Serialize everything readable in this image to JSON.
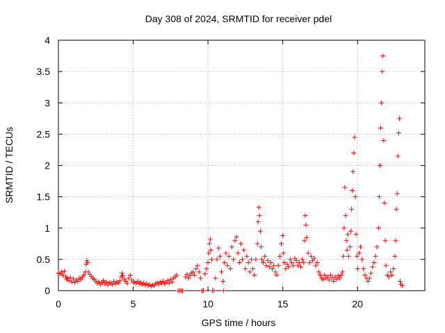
{
  "chart_data": {
    "type": "scatter",
    "title": "Day 308 of 2024, SRMTID for receiver pdel",
    "xlabel": "GPS time / hours",
    "ylabel": "SRMTID / TECUs",
    "xlim": [
      0,
      24.5
    ],
    "ylim": [
      0,
      4
    ],
    "xticks": [
      0,
      5,
      10,
      15,
      20
    ],
    "yticks": [
      0,
      0.5,
      1,
      1.5,
      2,
      2.5,
      3,
      3.5,
      4
    ],
    "xtick_labels": [
      "0",
      "5",
      "10",
      "15",
      "20"
    ],
    "ytick_labels": [
      "0",
      "0.5",
      "1",
      "1.5",
      "2",
      "2.5",
      "3",
      "3.5",
      "4"
    ],
    "grid": true,
    "marker": "+",
    "series": [
      {
        "name": "SRMTID",
        "color": "#ff0000",
        "points": [
          [
            0.0,
            0.28
          ],
          [
            0.1,
            0.27
          ],
          [
            0.2,
            0.3
          ],
          [
            0.3,
            0.25
          ],
          [
            0.4,
            0.31
          ],
          [
            0.5,
            0.22
          ],
          [
            0.55,
            0.18
          ],
          [
            0.6,
            0.2
          ],
          [
            0.7,
            0.16
          ],
          [
            0.8,
            0.21
          ],
          [
            0.9,
            0.14
          ],
          [
            1.0,
            0.19
          ],
          [
            1.1,
            0.13
          ],
          [
            1.2,
            0.17
          ],
          [
            1.3,
            0.15
          ],
          [
            1.4,
            0.2
          ],
          [
            1.5,
            0.18
          ],
          [
            1.6,
            0.22
          ],
          [
            1.7,
            0.25
          ],
          [
            1.8,
            0.3
          ],
          [
            1.85,
            0.42
          ],
          [
            1.9,
            0.48
          ],
          [
            1.95,
            0.45
          ],
          [
            2.0,
            0.3
          ],
          [
            2.1,
            0.26
          ],
          [
            2.2,
            0.23
          ],
          [
            2.3,
            0.2
          ],
          [
            2.4,
            0.18
          ],
          [
            2.5,
            0.15
          ],
          [
            2.6,
            0.12
          ],
          [
            2.7,
            0.14
          ],
          [
            2.8,
            0.1
          ],
          [
            2.9,
            0.13
          ],
          [
            3.0,
            0.16
          ],
          [
            3.1,
            0.11
          ],
          [
            3.2,
            0.14
          ],
          [
            3.3,
            0.09
          ],
          [
            3.4,
            0.13
          ],
          [
            3.5,
            0.12
          ],
          [
            3.6,
            0.1
          ],
          [
            3.7,
            0.15
          ],
          [
            3.8,
            0.11
          ],
          [
            3.9,
            0.14
          ],
          [
            4.0,
            0.12
          ],
          [
            4.1,
            0.16
          ],
          [
            4.2,
            0.22
          ],
          [
            4.25,
            0.28
          ],
          [
            4.3,
            0.24
          ],
          [
            4.4,
            0.18
          ],
          [
            4.5,
            0.15
          ],
          [
            4.6,
            0.12
          ],
          [
            4.7,
            0.2
          ],
          [
            4.8,
            0.25
          ],
          [
            4.9,
            0.17
          ],
          [
            5.0,
            0.14
          ],
          [
            5.1,
            0.13
          ],
          [
            5.2,
            0.12
          ],
          [
            5.3,
            0.15
          ],
          [
            5.4,
            0.11
          ],
          [
            5.5,
            0.13
          ],
          [
            5.6,
            0.1
          ],
          [
            5.7,
            0.12
          ],
          [
            5.8,
            0.09
          ],
          [
            5.9,
            0.11
          ],
          [
            6.0,
            0.08
          ],
          [
            6.1,
            0.1
          ],
          [
            6.2,
            0.07
          ],
          [
            6.3,
            0.09
          ],
          [
            6.4,
            0.08
          ],
          [
            6.5,
            0.11
          ],
          [
            6.6,
            0.13
          ],
          [
            6.7,
            0.1
          ],
          [
            6.8,
            0.14
          ],
          [
            6.9,
            0.12
          ],
          [
            7.0,
            0.15
          ],
          [
            7.1,
            0.11
          ],
          [
            7.2,
            0.13
          ],
          [
            7.3,
            0.16
          ],
          [
            7.4,
            0.12
          ],
          [
            7.5,
            0.18
          ],
          [
            7.6,
            0.14
          ],
          [
            7.7,
            0.2
          ],
          [
            7.8,
            0.22
          ],
          [
            7.9,
            0.25
          ],
          [
            8.0,
            0.0
          ],
          [
            8.1,
            0.0
          ],
          [
            8.2,
            0.0
          ],
          [
            8.3,
            0.0
          ],
          [
            8.5,
            0.22
          ],
          [
            8.6,
            0.26
          ],
          [
            8.7,
            0.2
          ],
          [
            8.8,
            0.24
          ],
          [
            8.9,
            0.28
          ],
          [
            9.0,
            0.3
          ],
          [
            9.1,
            0.25
          ],
          [
            9.2,
            0.35
          ],
          [
            9.3,
            0.4
          ],
          [
            9.4,
            0.3
          ],
          [
            9.5,
            0.2
          ],
          [
            9.6,
            0.0
          ],
          [
            9.7,
            0.0
          ],
          [
            9.8,
            0.27
          ],
          [
            9.9,
            0.35
          ],
          [
            10.0,
            0.45
          ],
          [
            10.05,
            0.6
          ],
          [
            10.1,
            0.75
          ],
          [
            10.15,
            0.82
          ],
          [
            10.2,
            0.65
          ],
          [
            10.25,
            0.5
          ],
          [
            10.3,
            0.0
          ],
          [
            10.4,
            0.0
          ],
          [
            10.5,
            0.2
          ],
          [
            10.6,
            0.5
          ],
          [
            10.7,
            0.68
          ],
          [
            10.8,
            0.55
          ],
          [
            10.9,
            0.3
          ],
          [
            11.0,
            0.15
          ],
          [
            11.05,
            0.0
          ],
          [
            11.1,
            0.45
          ],
          [
            11.2,
            0.6
          ],
          [
            11.3,
            0.4
          ],
          [
            11.4,
            0.55
          ],
          [
            11.5,
            0.35
          ],
          [
            11.6,
            0.7
          ],
          [
            11.7,
            0.5
          ],
          [
            11.8,
            0.8
          ],
          [
            11.9,
            0.86
          ],
          [
            12.0,
            0.6
          ],
          [
            12.1,
            0.45
          ],
          [
            12.2,
            0.75
          ],
          [
            12.3,
            0.5
          ],
          [
            12.4,
            0.65
          ],
          [
            12.5,
            0.35
          ],
          [
            12.6,
            0.55
          ],
          [
            12.7,
            0.45
          ],
          [
            12.8,
            0.3
          ],
          [
            12.9,
            0.5
          ],
          [
            13.0,
            0.35
          ],
          [
            13.1,
            0.25
          ],
          [
            13.2,
            0.5
          ],
          [
            13.3,
            0.75
          ],
          [
            13.35,
            1.1
          ],
          [
            13.4,
            1.33
          ],
          [
            13.45,
            1.2
          ],
          [
            13.5,
            0.95
          ],
          [
            13.55,
            0.7
          ],
          [
            13.6,
            0.5
          ],
          [
            13.7,
            0.45
          ],
          [
            13.8,
            0.55
          ],
          [
            13.9,
            0.4
          ],
          [
            14.0,
            0.48
          ],
          [
            14.1,
            0.38
          ],
          [
            14.2,
            0.45
          ],
          [
            14.3,
            0.35
          ],
          [
            14.4,
            0.4
          ],
          [
            14.5,
            0.3
          ],
          [
            14.6,
            0.25
          ],
          [
            14.7,
            0.4
          ],
          [
            14.8,
            0.55
          ],
          [
            14.9,
            0.75
          ],
          [
            15.0,
            0.88
          ],
          [
            15.05,
            0.6
          ],
          [
            15.1,
            0.45
          ],
          [
            15.2,
            0.35
          ],
          [
            15.3,
            0.42
          ],
          [
            15.4,
            0.38
          ],
          [
            15.5,
            0.5
          ],
          [
            15.6,
            0.45
          ],
          [
            15.7,
            0.4
          ],
          [
            15.8,
            0.52
          ],
          [
            15.9,
            0.48
          ],
          [
            16.0,
            0.4
          ],
          [
            16.1,
            0.45
          ],
          [
            16.2,
            0.38
          ],
          [
            16.3,
            0.5
          ],
          [
            16.4,
            0.45
          ],
          [
            16.45,
            0.8
          ],
          [
            16.5,
            1.2
          ],
          [
            16.55,
            1.05
          ],
          [
            16.6,
            0.85
          ],
          [
            16.7,
            0.6
          ],
          [
            16.8,
            0.45
          ],
          [
            16.9,
            0.55
          ],
          [
            17.0,
            0.48
          ],
          [
            17.1,
            0.52
          ],
          [
            17.2,
            0.4
          ],
          [
            17.3,
            0.45
          ],
          [
            17.4,
            0.3
          ],
          [
            17.5,
            0.25
          ],
          [
            17.6,
            0.2
          ],
          [
            17.7,
            0.18
          ],
          [
            17.8,
            0.25
          ],
          [
            17.9,
            0.2
          ],
          [
            18.0,
            0.22
          ],
          [
            18.1,
            0.17
          ],
          [
            18.2,
            0.25
          ],
          [
            18.3,
            0.2
          ],
          [
            18.4,
            0.15
          ],
          [
            18.5,
            0.22
          ],
          [
            18.6,
            0.18
          ],
          [
            18.7,
            0.24
          ],
          [
            18.8,
            0.2
          ],
          [
            18.9,
            0.25
          ],
          [
            19.0,
            0.3
          ],
          [
            19.05,
            0.55
          ],
          [
            19.1,
            1.0
          ],
          [
            19.15,
            1.65
          ],
          [
            19.2,
            1.2
          ],
          [
            19.25,
            0.8
          ],
          [
            19.3,
            0.65
          ],
          [
            19.35,
            0.9
          ],
          [
            19.4,
            0.55
          ],
          [
            19.5,
            0.7
          ],
          [
            19.55,
            0.95
          ],
          [
            19.6,
            1.3
          ],
          [
            19.65,
            1.6
          ],
          [
            19.7,
            1.9
          ],
          [
            19.75,
            2.2
          ],
          [
            19.8,
            2.45
          ],
          [
            19.85,
            1.5
          ],
          [
            19.9,
            0.9
          ],
          [
            19.95,
            0.55
          ],
          [
            20.0,
            0.35
          ],
          [
            20.1,
            0.6
          ],
          [
            20.2,
            0.7
          ],
          [
            20.3,
            0.5
          ],
          [
            20.4,
            0.35
          ],
          [
            20.5,
            0.25
          ],
          [
            20.6,
            0.2
          ],
          [
            20.7,
            0.15
          ],
          [
            20.8,
            0.2
          ],
          [
            20.9,
            0.28
          ],
          [
            21.0,
            0.38
          ],
          [
            21.1,
            0.45
          ],
          [
            21.2,
            0.55
          ],
          [
            21.3,
            0.7
          ],
          [
            21.4,
            1.0
          ],
          [
            21.45,
            1.5
          ],
          [
            21.5,
            2.0
          ],
          [
            21.55,
            2.6
          ],
          [
            21.6,
            3.0
          ],
          [
            21.65,
            3.5
          ],
          [
            21.7,
            3.75
          ],
          [
            21.75,
            2.4
          ],
          [
            21.8,
            1.4
          ],
          [
            21.85,
            0.8
          ],
          [
            21.9,
            0.4
          ],
          [
            22.0,
            0.25
          ],
          [
            22.1,
            0.22
          ],
          [
            22.2,
            0.3
          ],
          [
            22.3,
            0.25
          ],
          [
            22.4,
            0.35
          ],
          [
            22.5,
            0.55
          ],
          [
            22.55,
            0.8
          ],
          [
            22.6,
            1.3
          ],
          [
            22.65,
            1.55
          ],
          [
            22.7,
            2.15
          ],
          [
            22.75,
            2.52
          ],
          [
            22.8,
            2.75
          ],
          [
            22.85,
            0.15
          ],
          [
            22.9,
            0.1
          ],
          [
            23.0,
            0.08
          ]
        ]
      }
    ]
  }
}
